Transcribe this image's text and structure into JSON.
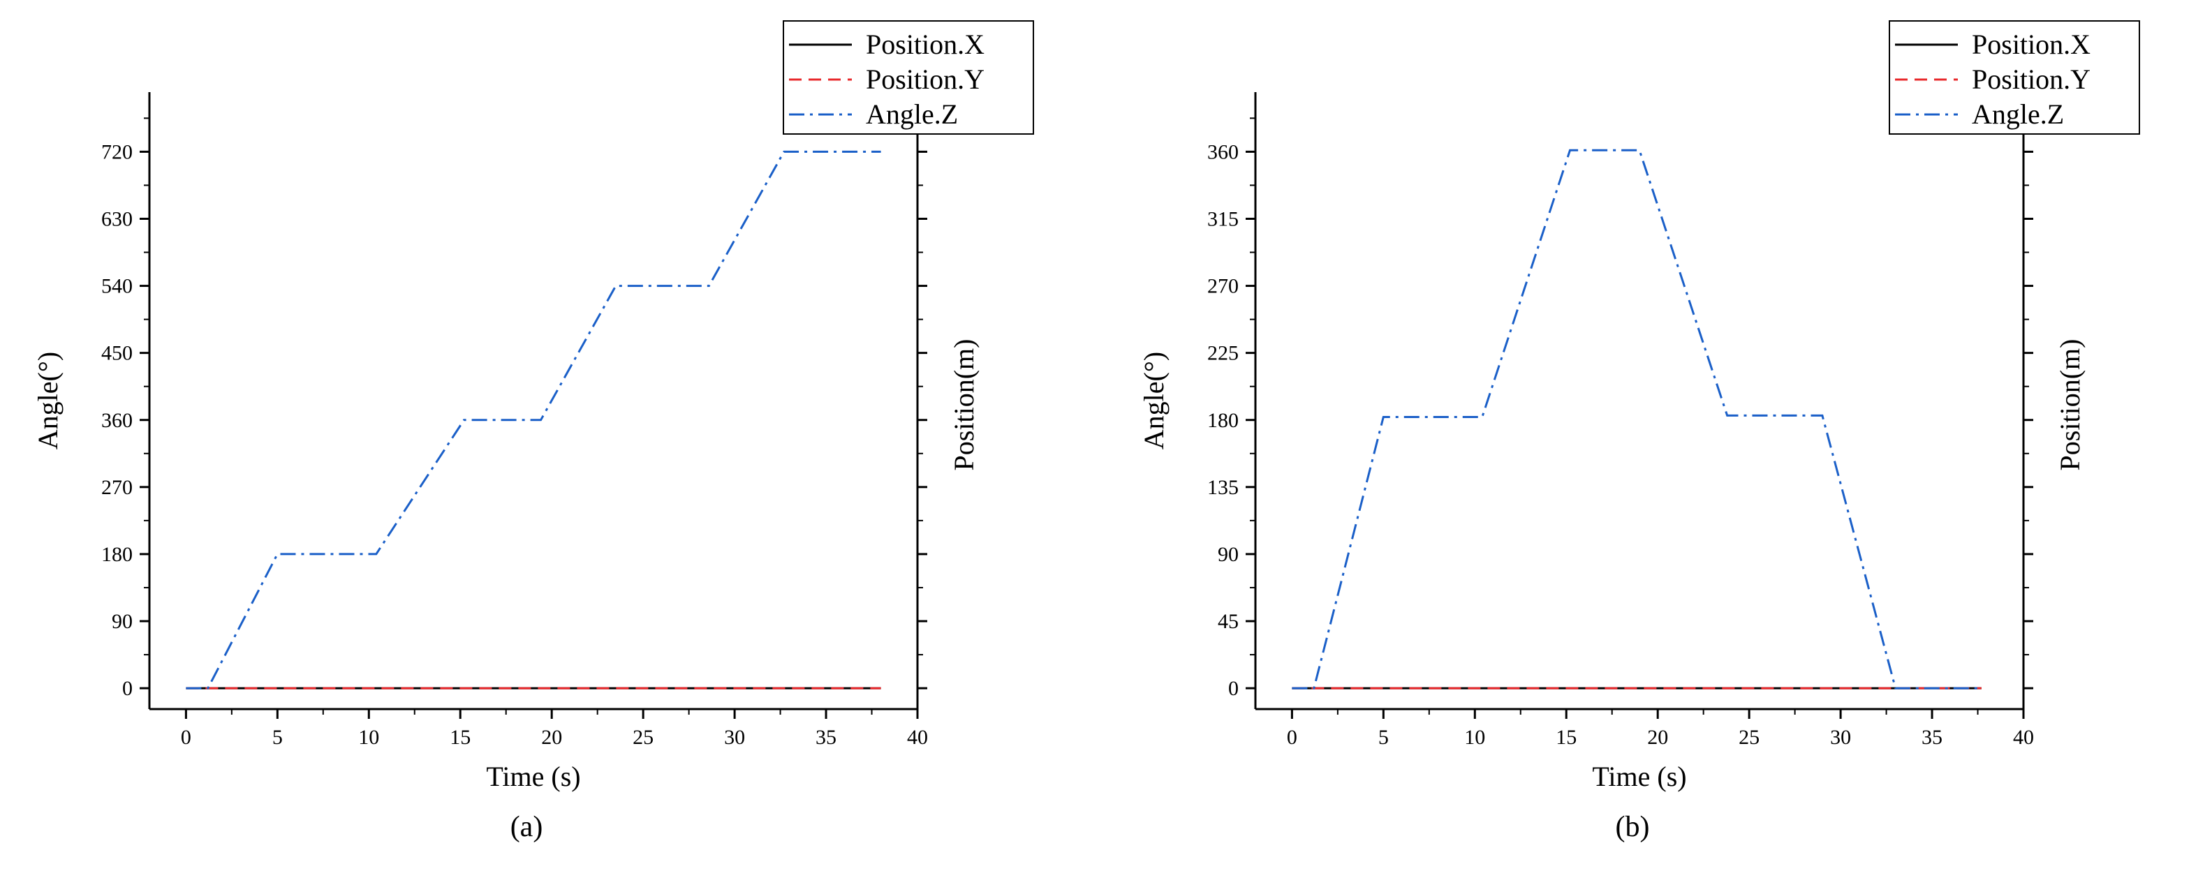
{
  "chart_data": [
    {
      "type": "line",
      "caption": "(a)",
      "xlabel": "Time (s)",
      "ylabel": "Angle(°)",
      "ylabel_right": "Position(m)",
      "xlim": [
        -2,
        40
      ],
      "ylim": [
        -28,
        800
      ],
      "xticks": [
        0,
        5,
        10,
        15,
        20,
        25,
        30,
        35,
        40
      ],
      "yticks": [
        0,
        90,
        180,
        270,
        360,
        450,
        540,
        630,
        720
      ],
      "grid": false,
      "legend_position": "top-right",
      "series": [
        {
          "name": "Position.X",
          "color": "#000000",
          "dash": "solid",
          "x": [
            0,
            38
          ],
          "y": [
            0,
            0
          ]
        },
        {
          "name": "Position.Y",
          "color": "#e8282b",
          "dash": "dashed",
          "x": [
            0,
            38
          ],
          "y": [
            0,
            0
          ]
        },
        {
          "name": "Angle.Z",
          "color": "#1a5fc8",
          "dash": "dashdot",
          "x": [
            0,
            1.2,
            5,
            10.4,
            15.2,
            19.4,
            23.5,
            28.6,
            32.7,
            38
          ],
          "y": [
            0,
            0,
            180,
            180,
            360,
            360,
            540,
            540,
            720,
            720
          ]
        }
      ]
    },
    {
      "type": "line",
      "caption": "(b)",
      "xlabel": "Time (s)",
      "ylabel": "Angle(°)",
      "ylabel_right": "Position(m)",
      "xlim": [
        -2,
        40
      ],
      "ylim": [
        -14,
        400
      ],
      "xticks": [
        0,
        5,
        10,
        15,
        20,
        25,
        30,
        35,
        40
      ],
      "yticks": [
        0,
        45,
        90,
        135,
        180,
        225,
        270,
        315,
        360
      ],
      "grid": false,
      "legend_position": "top-right",
      "series": [
        {
          "name": "Position.X",
          "color": "#000000",
          "dash": "solid",
          "x": [
            0,
            37.7
          ],
          "y": [
            0,
            0
          ]
        },
        {
          "name": "Position.Y",
          "color": "#e8282b",
          "dash": "dashed",
          "x": [
            0,
            37.7
          ],
          "y": [
            0,
            0
          ]
        },
        {
          "name": "Angle.Z",
          "color": "#1a5fc8",
          "dash": "dashdot",
          "x": [
            0,
            1.2,
            5,
            10.4,
            15.2,
            19,
            23.8,
            29,
            33,
            37.7
          ],
          "y": [
            0,
            0,
            182,
            182,
            361,
            361,
            183,
            183,
            0,
            0
          ]
        }
      ]
    }
  ]
}
